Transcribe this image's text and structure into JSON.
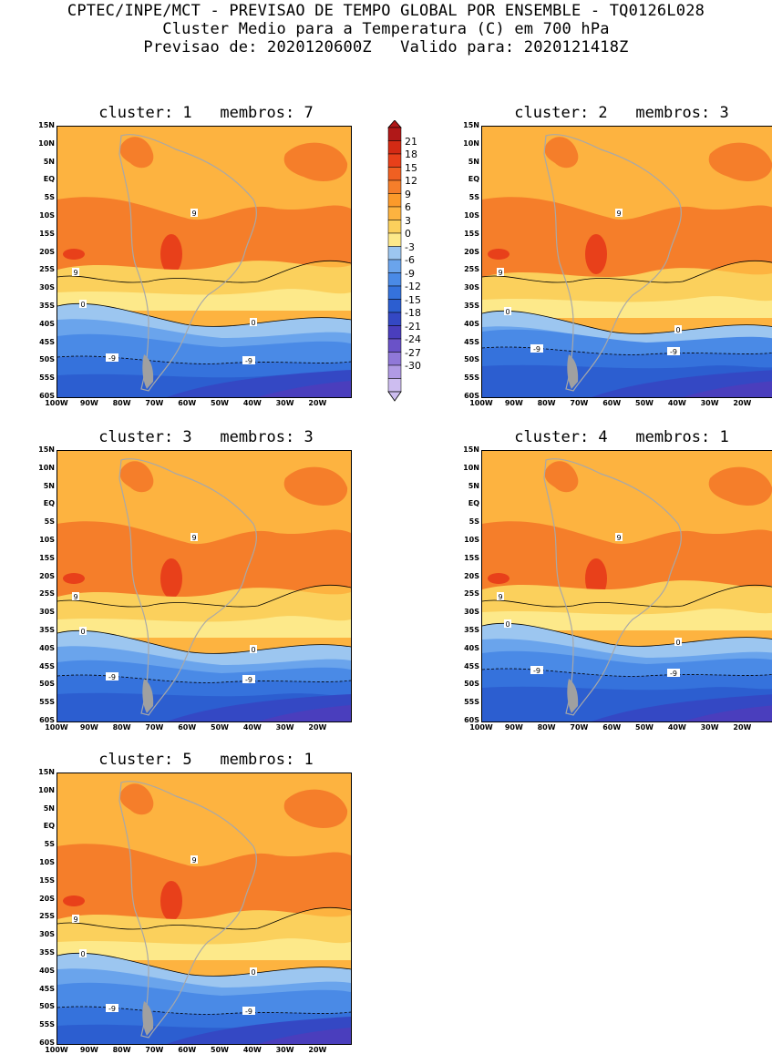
{
  "header": {
    "line1": "CPTEC/INPE/MCT - PREVISAO DE TEMPO GLOBAL POR ENSEMBLE - TQ0126L028",
    "line2": "Cluster Medio para a Temperatura (C) em 700 hPa",
    "line3": "Previsao de: 2020120600Z   Valido para: 2020121418Z"
  },
  "axes": {
    "lat_labels": [
      "15N",
      "10N",
      "5N",
      "EQ",
      "5S",
      "10S",
      "15S",
      "20S",
      "25S",
      "30S",
      "35S",
      "40S",
      "45S",
      "50S",
      "55S",
      "60S"
    ],
    "lon_labels": [
      "100W",
      "90W",
      "80W",
      "70W",
      "60W",
      "50W",
      "40W",
      "30W",
      "20W"
    ]
  },
  "colorbar": {
    "labels": [
      "21",
      "18",
      "15",
      "12",
      "9",
      "6",
      "3",
      "0",
      "-3",
      "-6",
      "-9",
      "-12",
      "-15",
      "-18",
      "-21",
      "-24",
      "-27",
      "-30"
    ],
    "colors": [
      "#b01818",
      "#d42a14",
      "#e8401a",
      "#f06022",
      "#f57e2a",
      "#fc9a2a",
      "#fdb340",
      "#fbd05c",
      "#fde98a",
      "#9cc6f0",
      "#6aa4ec",
      "#4a8ae6",
      "#3572dc",
      "#2c5ed0",
      "#3448c4",
      "#4a3ebd",
      "#6a52c8",
      "#9078d8",
      "#b09ae4",
      "#cdbdf0"
    ]
  },
  "clusters": [
    {
      "label": "cluster: 1   membros: 7"
    },
    {
      "label": "cluster: 2   membros: 3"
    },
    {
      "label": "cluster: 3   membros: 3"
    },
    {
      "label": "cluster: 4   membros: 1"
    },
    {
      "label": "cluster: 5   membros: 1"
    }
  ],
  "contour_labels": {
    "warm": "9",
    "zero": "0",
    "cold": "-9"
  },
  "colors": {
    "ocean_warm": "#fdb340",
    "warm_band": "#f57e2a",
    "hot_core": "#e8401a",
    "mild": "#fbd05c",
    "pale": "#fde98a",
    "cool1": "#9cc6f0",
    "cool2": "#6aa4ec",
    "cool3": "#4a8ae6",
    "cold1": "#3572dc",
    "cold2": "#2c5ed0",
    "cold3": "#3448c4",
    "cold4": "#4a3ebd",
    "land_line": "#a8a8a8"
  }
}
